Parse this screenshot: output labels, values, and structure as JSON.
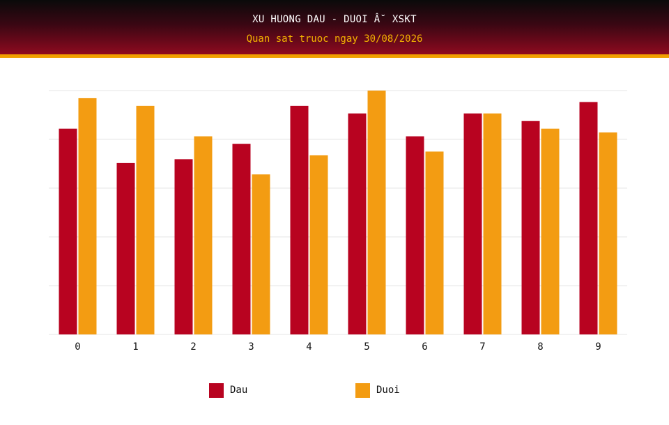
{
  "header": {
    "title": "XU HUONG DAU - DUOI Â˘ XSKT",
    "subtitle": "Quan sat truoc ngay 30/08/2026"
  },
  "chart_data": {
    "type": "bar",
    "categories": [
      "0",
      "1",
      "2",
      "3",
      "4",
      "5",
      "6",
      "7",
      "8",
      "9"
    ],
    "series": [
      {
        "name": "Dau",
        "color": "#b80320",
        "values": [
          27,
          22.5,
          23,
          25,
          30,
          29,
          26,
          29,
          28,
          30.5
        ]
      },
      {
        "name": "Duoi",
        "color": "#f39c12",
        "values": [
          31,
          30,
          26,
          21,
          23.5,
          32,
          24,
          29,
          27,
          26.5
        ]
      }
    ],
    "ylim": [
      0,
      32
    ],
    "y_tick_count": 5,
    "grid": true,
    "legend": "bottom",
    "xlabel": "",
    "ylabel": ""
  }
}
